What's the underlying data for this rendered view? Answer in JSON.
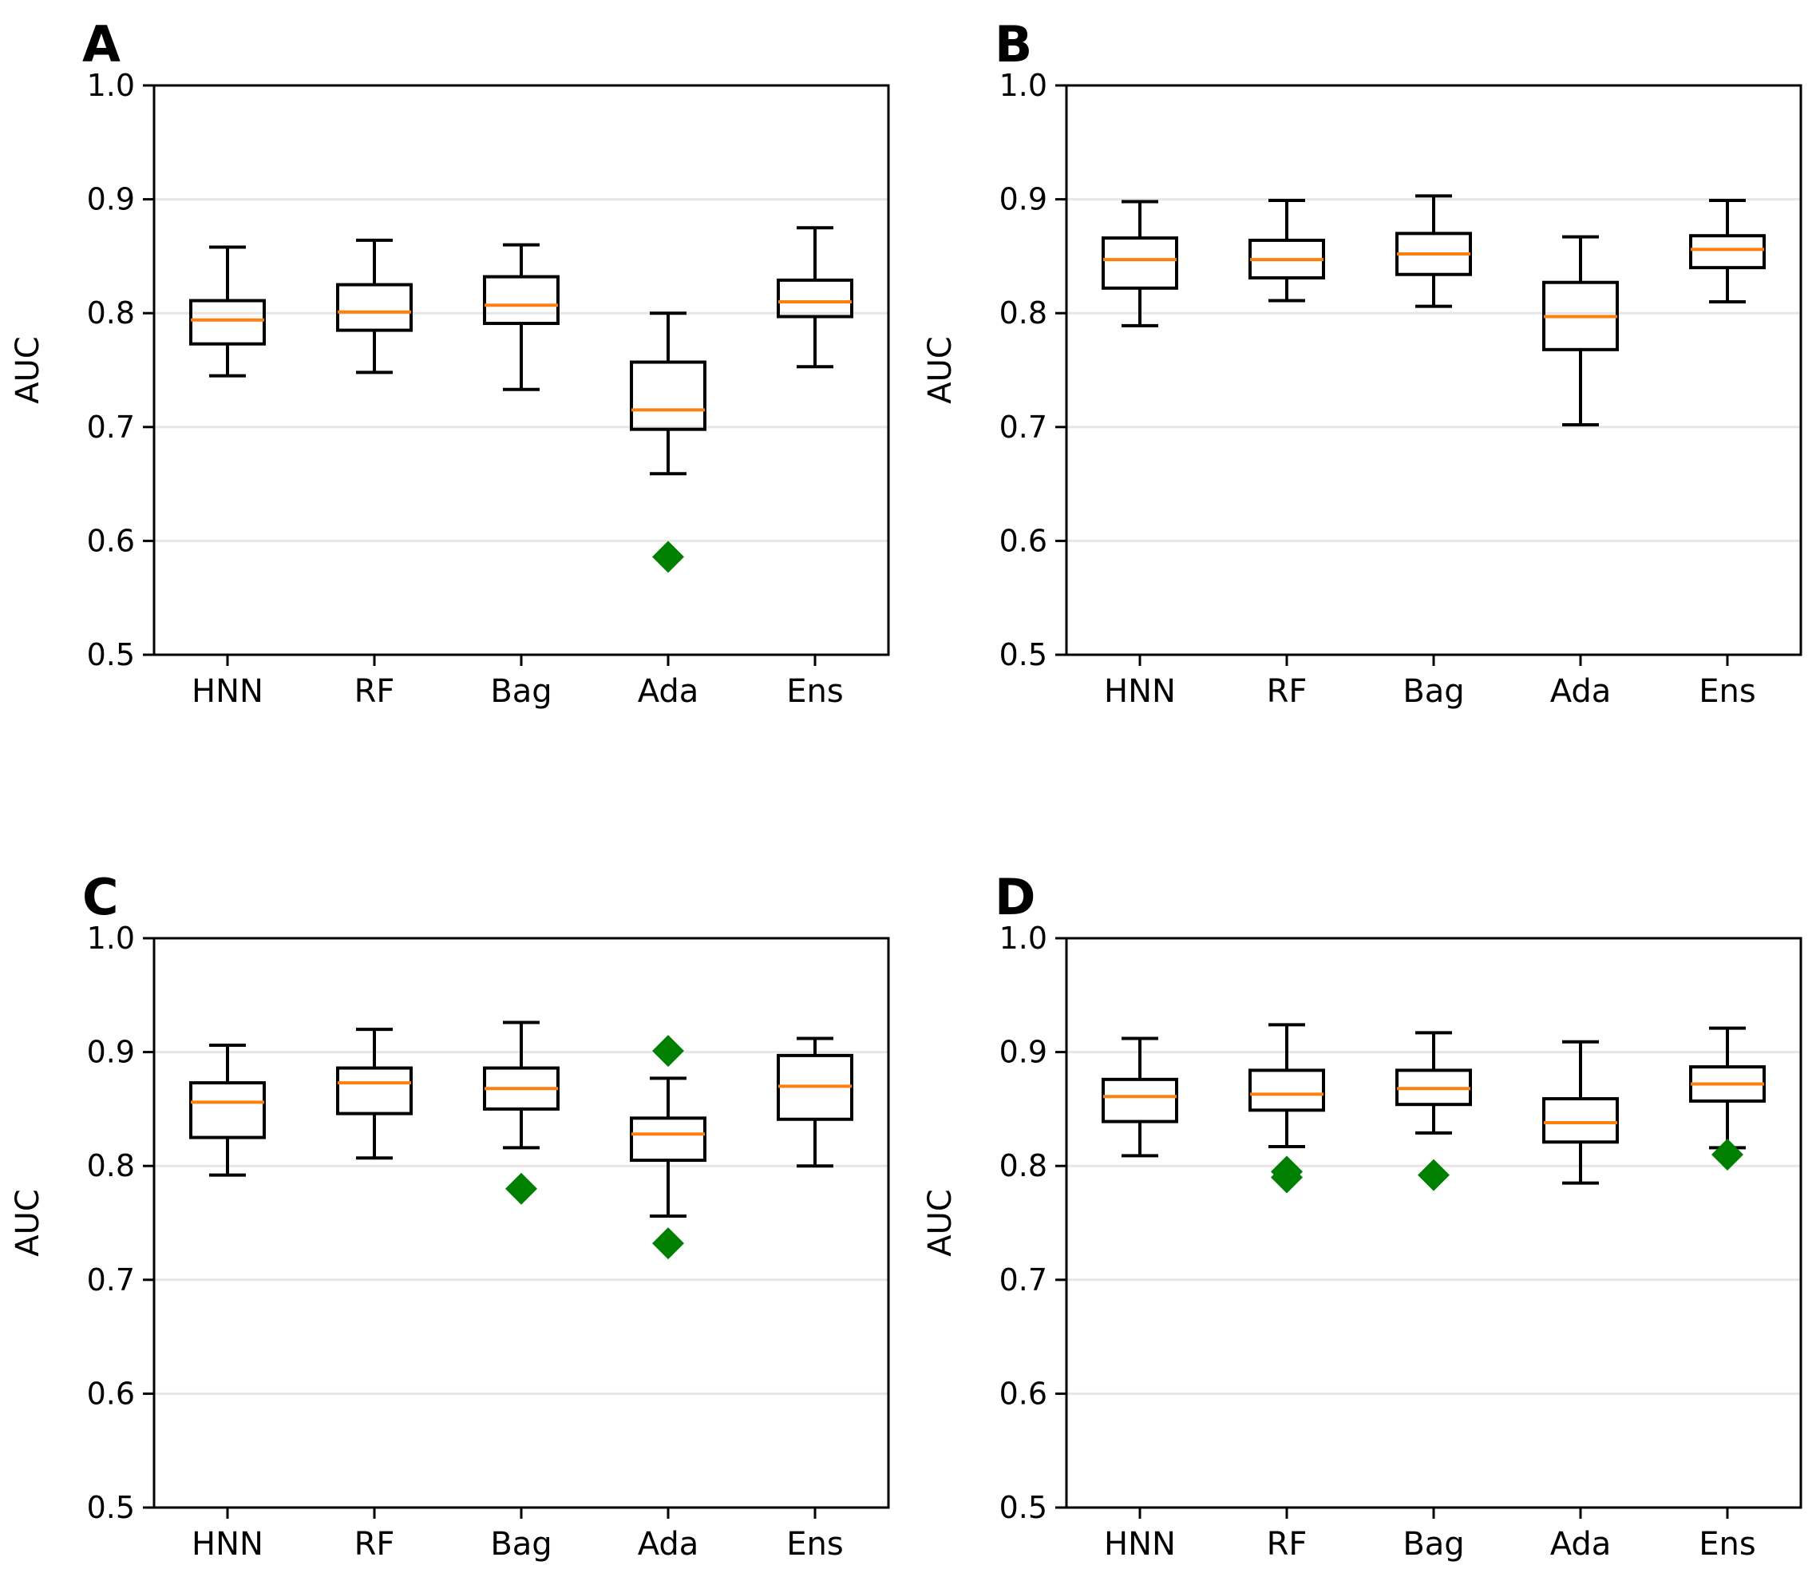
{
  "colors": {
    "box": "#000000",
    "median": "#ff7f0e",
    "outlier": "#008000",
    "grid": "#e6e6e6",
    "background": "#ffffff"
  },
  "chart_data": [
    {
      "panel": "A",
      "type": "box",
      "ylabel": "AUC",
      "ylim": [
        0.5,
        1.0
      ],
      "yticks": [
        "0.5",
        "0.6",
        "0.7",
        "0.8",
        "0.9",
        "1.0"
      ],
      "grid": "horizontal",
      "categories": [
        "HNN",
        "RF",
        "Bag",
        "Ada",
        "Ens"
      ],
      "boxes": [
        {
          "whislo": 0.745,
          "q1": 0.773,
          "med": 0.794,
          "q3": 0.811,
          "whishi": 0.858,
          "fliers": []
        },
        {
          "whislo": 0.748,
          "q1": 0.785,
          "med": 0.801,
          "q3": 0.825,
          "whishi": 0.864,
          "fliers": []
        },
        {
          "whislo": 0.733,
          "q1": 0.791,
          "med": 0.807,
          "q3": 0.832,
          "whishi": 0.86,
          "fliers": []
        },
        {
          "whislo": 0.659,
          "q1": 0.698,
          "med": 0.715,
          "q3": 0.757,
          "whishi": 0.8,
          "fliers": [
            0.586
          ]
        },
        {
          "whislo": 0.753,
          "q1": 0.797,
          "med": 0.81,
          "q3": 0.829,
          "whishi": 0.875,
          "fliers": []
        }
      ]
    },
    {
      "panel": "B",
      "type": "box",
      "ylabel": "AUC",
      "ylim": [
        0.5,
        1.0
      ],
      "yticks": [
        "0.5",
        "0.6",
        "0.7",
        "0.8",
        "0.9",
        "1.0"
      ],
      "grid": "horizontal",
      "categories": [
        "HNN",
        "RF",
        "Bag",
        "Ada",
        "Ens"
      ],
      "boxes": [
        {
          "whislo": 0.789,
          "q1": 0.822,
          "med": 0.847,
          "q3": 0.866,
          "whishi": 0.898,
          "fliers": []
        },
        {
          "whislo": 0.811,
          "q1": 0.831,
          "med": 0.847,
          "q3": 0.864,
          "whishi": 0.899,
          "fliers": []
        },
        {
          "whislo": 0.806,
          "q1": 0.834,
          "med": 0.852,
          "q3": 0.87,
          "whishi": 0.903,
          "fliers": []
        },
        {
          "whislo": 0.702,
          "q1": 0.768,
          "med": 0.797,
          "q3": 0.827,
          "whishi": 0.867,
          "fliers": []
        },
        {
          "whislo": 0.81,
          "q1": 0.84,
          "med": 0.856,
          "q3": 0.868,
          "whishi": 0.899,
          "fliers": []
        }
      ]
    },
    {
      "panel": "C",
      "type": "box",
      "ylabel": "AUC",
      "ylim": [
        0.5,
        1.0
      ],
      "yticks": [
        "0.5",
        "0.6",
        "0.7",
        "0.8",
        "0.9",
        "1.0"
      ],
      "grid": "horizontal",
      "categories": [
        "HNN",
        "RF",
        "Bag",
        "Ada",
        "Ens"
      ],
      "boxes": [
        {
          "whislo": 0.792,
          "q1": 0.825,
          "med": 0.856,
          "q3": 0.873,
          "whishi": 0.906,
          "fliers": []
        },
        {
          "whislo": 0.807,
          "q1": 0.846,
          "med": 0.873,
          "q3": 0.886,
          "whishi": 0.92,
          "fliers": []
        },
        {
          "whislo": 0.816,
          "q1": 0.85,
          "med": 0.868,
          "q3": 0.886,
          "whishi": 0.926,
          "fliers": [
            0.78
          ]
        },
        {
          "whislo": 0.756,
          "q1": 0.805,
          "med": 0.828,
          "q3": 0.842,
          "whishi": 0.877,
          "fliers": [
            0.901,
            0.732
          ]
        },
        {
          "whislo": 0.8,
          "q1": 0.841,
          "med": 0.87,
          "q3": 0.897,
          "whishi": 0.912,
          "fliers": []
        }
      ]
    },
    {
      "panel": "D",
      "type": "box",
      "ylabel": "AUC",
      "ylim": [
        0.5,
        1.0
      ],
      "yticks": [
        "0.5",
        "0.6",
        "0.7",
        "0.8",
        "0.9",
        "1.0"
      ],
      "grid": "horizontal",
      "categories": [
        "HNN",
        "RF",
        "Bag",
        "Ada",
        "Ens"
      ],
      "boxes": [
        {
          "whislo": 0.809,
          "q1": 0.839,
          "med": 0.861,
          "q3": 0.876,
          "whishi": 0.912,
          "fliers": []
        },
        {
          "whislo": 0.817,
          "q1": 0.849,
          "med": 0.863,
          "q3": 0.884,
          "whishi": 0.924,
          "fliers": [
            0.795,
            0.79
          ]
        },
        {
          "whislo": 0.829,
          "q1": 0.854,
          "med": 0.868,
          "q3": 0.884,
          "whishi": 0.917,
          "fliers": [
            0.792
          ]
        },
        {
          "whislo": 0.785,
          "q1": 0.821,
          "med": 0.838,
          "q3": 0.859,
          "whishi": 0.909,
          "fliers": []
        },
        {
          "whislo": 0.816,
          "q1": 0.857,
          "med": 0.872,
          "q3": 0.887,
          "whishi": 0.921,
          "fliers": [
            0.81
          ]
        }
      ]
    }
  ]
}
